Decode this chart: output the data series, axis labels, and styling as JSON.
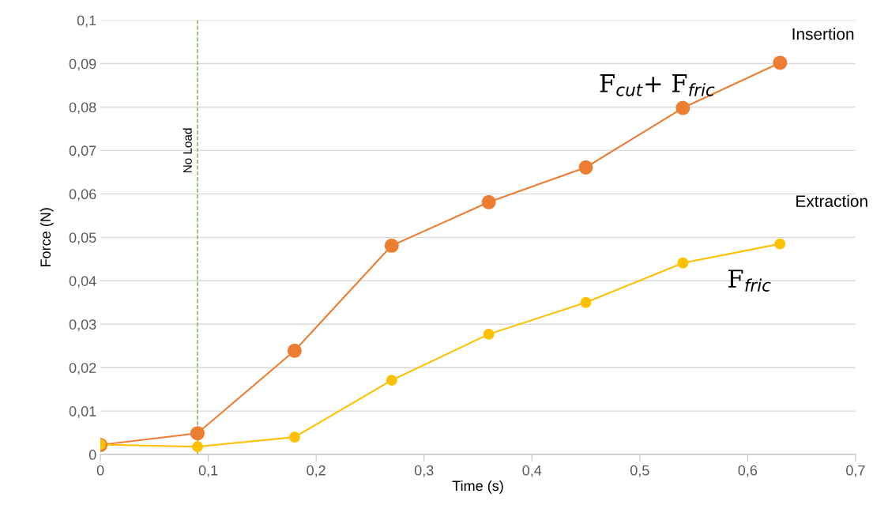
{
  "chart_data": {
    "type": "line",
    "xlabel": "Time (s)",
    "ylabel": "Force (N)",
    "x": [
      0,
      0.09,
      0.18,
      0.27,
      0.36,
      0.45,
      0.54,
      0.63
    ],
    "series": [
      {
        "color": "#ed7d31",
        "values": [
          0.0022,
          0.0049,
          0.0239,
          0.0481,
          0.0581,
          0.0661,
          0.0798,
          0.0902
        ]
      },
      {
        "color": "#ffc000",
        "values": [
          0.0023,
          0.0018,
          0.004,
          0.0171,
          0.0277,
          0.035,
          0.0441,
          0.0485
        ]
      }
    ],
    "xlim": [
      0,
      0.7
    ],
    "ylim": [
      0,
      0.1
    ],
    "xticks": [
      0,
      {
        "value": 0.1,
        "label": "0,1"
      },
      {
        "value": 0.2,
        "label": "0,2"
      },
      {
        "value": 0.3,
        "label": "0,3"
      },
      {
        "value": 0.4,
        "label": "0,4"
      },
      {
        "value": 0.5,
        "label": "0,5"
      },
      {
        "value": 0.6,
        "label": "0,6"
      },
      {
        "value": 0.7,
        "label": "0,7"
      }
    ],
    "yticks": [
      0,
      {
        "value": 0.01,
        "label": "0,01"
      },
      {
        "value": 0.02,
        "label": "0,02"
      },
      {
        "value": 0.03,
        "label": "0,03"
      },
      {
        "value": 0.04,
        "label": "0,04"
      },
      {
        "value": 0.05,
        "label": "0,05"
      },
      {
        "value": 0.06,
        "label": "0,06"
      },
      {
        "value": 0.07,
        "label": "0,07"
      },
      {
        "value": 0.08,
        "label": "0,08"
      },
      {
        "value": 0.09,
        "label": "0,09"
      },
      {
        "value": 0.1,
        "label": "0,1"
      }
    ],
    "ref_lines": [
      {
        "axis": "x",
        "value": 0.09,
        "label": "No Load",
        "color": "#70ad47",
        "line_style": "dashed"
      }
    ],
    "annotations": [
      "Insertion",
      "F$_{cut}$+ F$_{fric}$",
      "Extraction",
      "F$_{fric}$"
    ],
    "grid": "y",
    "legend": false,
    "marker": "circle",
    "line_style": "solid"
  }
}
